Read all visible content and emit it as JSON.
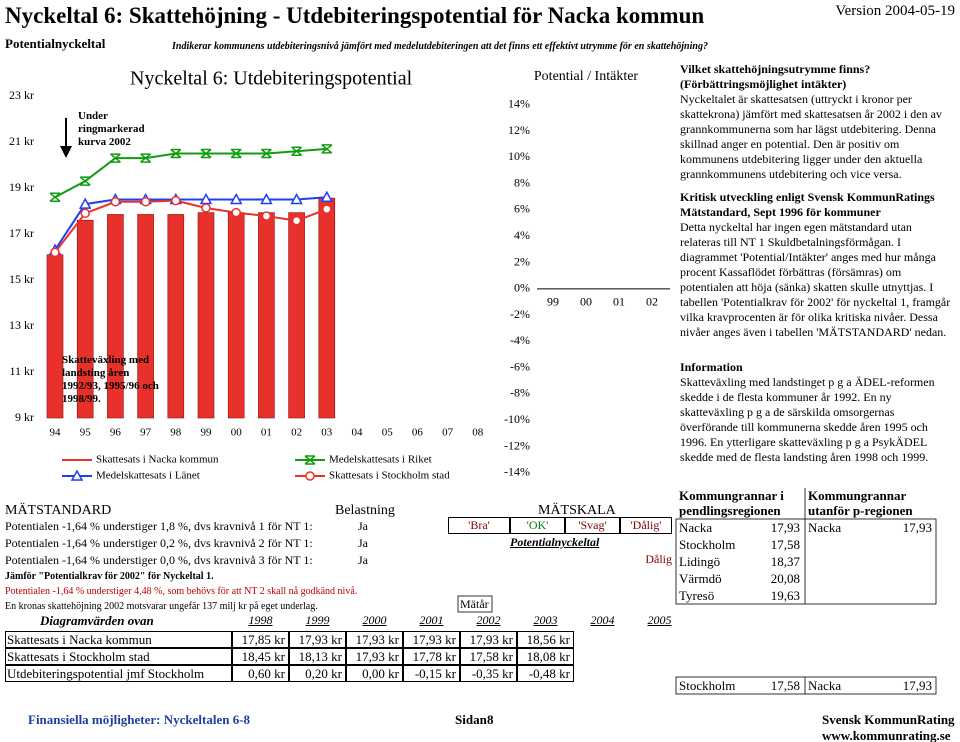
{
  "header": {
    "title": "Nyckeltal 6: Skattehöjning - Utdebiteringspotential för Nacka kommun",
    "version": "Version 2004-05-19",
    "label": "Potentialnyckeltal",
    "question": "Indikerar kommunens utdebiteringsnivå jämfört med medelutdebiteringen att det finns ett effektivt utrymme för en skattehöjning?"
  },
  "main_chart": {
    "type": "bar",
    "title": "Nyckeltal 6: Utdebiteringspotential",
    "annotation": "Under ringmarkerad kurva 2002",
    "note": "Skatteväxling med landsting åren 1992/93, 1995/96 och 1998/99.",
    "categories": [
      "94",
      "95",
      "96",
      "97",
      "98",
      "99",
      "00",
      "01",
      "02",
      "03",
      "04",
      "05",
      "06",
      "07",
      "08"
    ],
    "ylim": [
      9,
      24.5
    ],
    "yticks": [
      {
        "value": 9,
        "label": "9 kr"
      },
      {
        "value": 11,
        "label": "11 kr"
      },
      {
        "value": 13,
        "label": "13 kr"
      },
      {
        "value": 15,
        "label": "15 kr"
      },
      {
        "value": 17,
        "label": "17 kr"
      },
      {
        "value": 19,
        "label": "19 kr"
      },
      {
        "value": 21,
        "label": "21 kr"
      },
      {
        "value": 23,
        "label": "23 kr"
      }
    ],
    "series": [
      {
        "name": "Skattesats i Nacka kommun",
        "type": "bar",
        "color": "#e8312a",
        "values": [
          16.1,
          17.6,
          17.85,
          17.85,
          17.85,
          17.93,
          17.93,
          17.93,
          17.93,
          18.56,
          null,
          null,
          null,
          null,
          null
        ]
      },
      {
        "name": "Medelskattesats i Riket",
        "type": "line",
        "marker": "x",
        "color": "#109c10",
        "values": [
          18.6,
          19.3,
          20.3,
          20.3,
          20.5,
          20.5,
          20.5,
          20.5,
          20.6,
          20.7,
          null,
          null,
          null,
          null,
          null
        ]
      },
      {
        "name": "Medelskattesats i Länet",
        "type": "line",
        "marker": "triangle",
        "color": "#1f3ff0",
        "values": [
          16.3,
          18.3,
          18.5,
          18.5,
          18.5,
          18.5,
          18.5,
          18.5,
          18.5,
          18.6,
          null,
          null,
          null,
          null,
          null
        ]
      },
      {
        "name": "Skattesats i Stockholm stad",
        "type": "line",
        "marker": "circle",
        "color": "#e8312a",
        "values": [
          16.2,
          17.9,
          18.4,
          18.4,
          18.45,
          18.13,
          17.93,
          17.78,
          17.58,
          18.08,
          null,
          null,
          null,
          null,
          null
        ]
      }
    ]
  },
  "potential_chart": {
    "type": "bar",
    "title": "Potential / Intäkter",
    "categories": [
      "99",
      "00",
      "01",
      "02"
    ],
    "ylim": [
      -15,
      17
    ],
    "yticks": [
      {
        "value": 14,
        "label": "14%"
      },
      {
        "value": 12,
        "label": "12%"
      },
      {
        "value": 10,
        "label": "10%"
      },
      {
        "value": 8,
        "label": "8%"
      },
      {
        "value": 6,
        "label": "6%"
      },
      {
        "value": 4,
        "label": "4%"
      },
      {
        "value": 2,
        "label": "2%"
      },
      {
        "value": 0,
        "label": "0%"
      },
      {
        "value": -2,
        "label": "-2%"
      },
      {
        "value": -4,
        "label": "-4%"
      },
      {
        "value": -6,
        "label": "-6%"
      },
      {
        "value": -8,
        "label": "-8%"
      },
      {
        "value": -10,
        "label": "-10%"
      },
      {
        "value": -12,
        "label": "-12%"
      },
      {
        "value": -14,
        "label": "-14%"
      }
    ]
  },
  "description": {
    "heading": "Vilket skattehöjningsutrymme finns?",
    "subheading": "(Förbättringsmöjlighet intäkter)",
    "text": "Nyckeltalet är skattesatsen (uttryckt i kronor per skattekrona) jämfört med skattesatsen år 2002 i den av grannkommunerna som har lägst utdebitering. Denna skillnad anger en potential. Den är positiv om kommunens utdebitering ligger under den aktuella grannkommunens utdebitering och vice versa."
  },
  "critical": {
    "heading": "Kritisk utveckling enligt Svensk KommunRatings Mätstandard, Sept 1996 för kommuner",
    "text": "Detta nyckeltal har ingen egen mätstandard utan relateras till NT 1 Skuldbetalningsförmågan. I diagrammet 'Potential/Intäkter' anges med hur många procent Kassaflödet förbättras (försämras) om potentialen att höja (sänka) skatten skulle utnyttjas. I tabellen 'Potentialkrav för 2002' för nyckeltal 1, framgår vilka kravprocenten är för olika kritiska nivåer. Dessa nivåer anges även i tabellen 'MÄTSTANDARD' nedan."
  },
  "information": {
    "heading": "Information",
    "text": "Skatteväxling med landstinget p g a ÄDEL-reformen skedde i de flesta kommuner år 1992. En ny skatteväxling p g a de särskilda omsorgernas överförande till kommunerna skedde åren 1995 och 1996. En ytterligare skatteväxling p g a PsykÄDEL skedde med de flesta landsting åren 1998 och 1999."
  },
  "standard": {
    "title": "MÄTSTANDARD",
    "load_header": "Belastning",
    "scale_title": "MÄTSKALA",
    "rows": [
      {
        "text": "Potentialen -1,64 % understiger 1,8 %, dvs kravnivå 1 för NT 1:",
        "load": "Ja"
      },
      {
        "text": "Potentialen -1,64 % understiger 0,2 %, dvs kravnivå 2 för NT 1:",
        "load": "Ja"
      },
      {
        "text": "Potentialen -1,64 % understiger 0,0 %, dvs kravnivå 3 för NT 1:",
        "load": "Ja"
      }
    ],
    "scale": [
      "'Bra'",
      "'OK'",
      "'Svag'",
      "'Dålig'"
    ],
    "scale_label": "Potentialnyckeltal",
    "rating": "Dålig"
  },
  "notes": {
    "compare": "Jämför \"Potentialkrav för 2002\" för Nyckeltal 1.",
    "requirement": "Potentialen -1,64 % understiger 4,48 %, som behövs för att NT 2 skall nå godkänd nivå.",
    "krona": "En kronas skattehöjning 2002 motsvarar ungefär 137 milj kr på eget underlag.",
    "year_label": "Mätår"
  },
  "values_table": {
    "title": "Diagramvärden ovan",
    "years": [
      "1998",
      "1999",
      "2000",
      "2001",
      "2002",
      "2003",
      "2004",
      "2005"
    ],
    "rows": [
      {
        "label": "Skattesats i Nacka kommun",
        "values": [
          "17,85 kr",
          "17,93 kr",
          "17,93 kr",
          "17,93 kr",
          "17,93 kr",
          "18,56 kr"
        ]
      },
      {
        "label": "Skattesats i Stockholm stad",
        "values": [
          "18,45 kr",
          "18,13 kr",
          "17,93 kr",
          "17,78 kr",
          "17,58 kr",
          "18,08 kr"
        ]
      },
      {
        "label": "Utdebiteringspotential jmf Stockholm",
        "values": [
          "0,60 kr",
          "0,20 kr",
          "0,00 kr",
          "-0,15 kr",
          "-0,35 kr",
          "-0,48 kr"
        ]
      }
    ]
  },
  "neighbors": {
    "headers": [
      "Kommungrannar i pendlingsregionen",
      "Kommungrannar utanför p-regionen"
    ],
    "commuting": [
      [
        "Nacka",
        "17,93"
      ],
      [
        "Stockholm",
        "17,58"
      ],
      [
        "Lidingö",
        "18,37"
      ],
      [
        "Värmdö",
        "20,08"
      ],
      [
        "Tyresö",
        "19,63"
      ]
    ],
    "outside": [
      [
        "Nacka",
        "17,93"
      ]
    ],
    "lowest": [
      [
        "Stockholm",
        "17,58"
      ],
      [
        "Nacka",
        "17,93"
      ]
    ]
  },
  "footer": {
    "left": "Finansiella möjligheter: Nyckeltalen 6-8",
    "page_label": "Sidan",
    "page": "8",
    "brand": "Svensk KommunRating",
    "url": "www.kommunrating.se"
  }
}
